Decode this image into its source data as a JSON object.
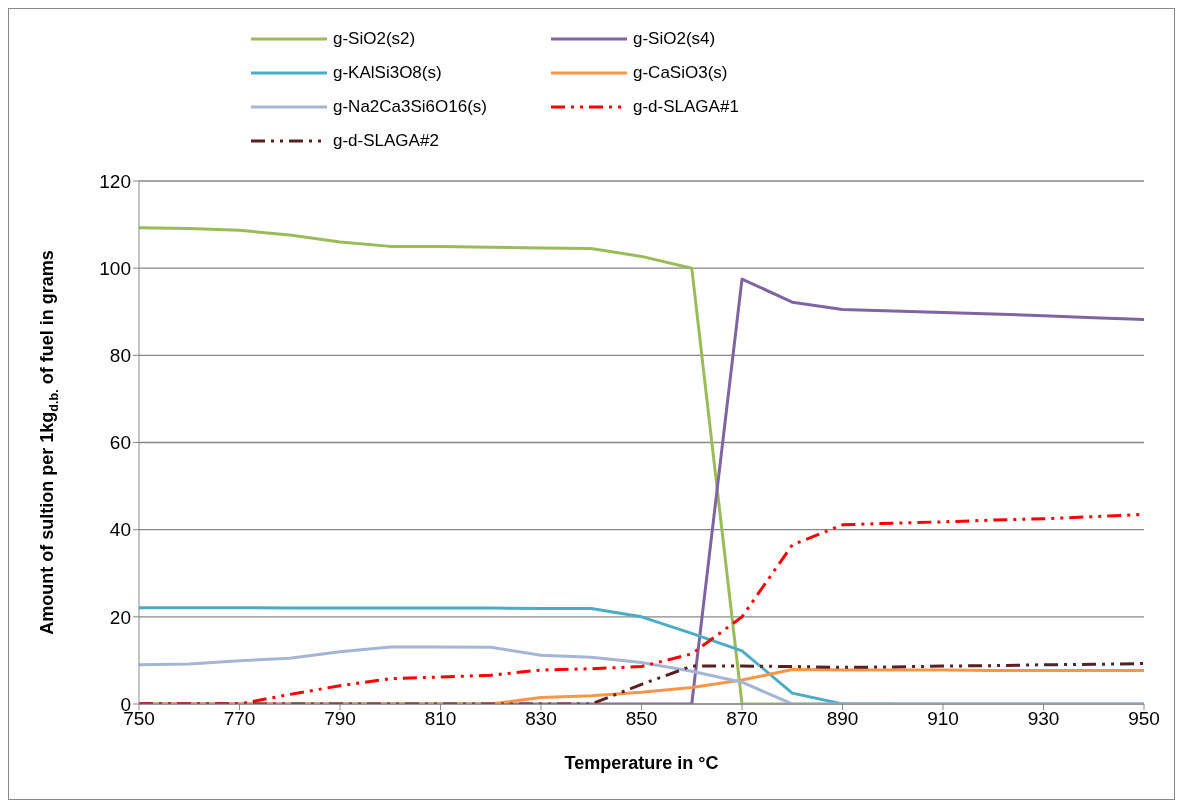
{
  "chart_data": {
    "type": "line",
    "xlabel": "Temperature in °C",
    "ylabel": "Amount of sultion per 1kg$_{d.b.}$ of fuel in grams",
    "x": [
      750,
      760,
      770,
      780,
      790,
      800,
      810,
      820,
      830,
      840,
      850,
      860,
      870,
      880,
      890,
      900,
      910,
      920,
      930,
      940,
      950
    ],
    "xlim": [
      750,
      950
    ],
    "xticks": [
      750,
      770,
      790,
      810,
      830,
      850,
      870,
      890,
      910,
      930,
      950
    ],
    "ylim": [
      0,
      120
    ],
    "yticks": [
      0,
      20,
      40,
      60,
      80,
      100,
      120
    ],
    "grid": "y",
    "legend": "top",
    "marker": "none",
    "series": [
      {
        "name": "g-SiO2(s2)",
        "color": "#9bbb59",
        "line_style": "solid",
        "values": [
          109.3,
          109.1,
          108.7,
          107.6,
          106,
          105,
          105,
          104.8,
          104.6,
          104.5,
          102.7,
          100,
          0,
          0,
          0,
          0,
          null,
          null,
          null,
          null,
          null
        ]
      },
      {
        "name": "g-SiO2(s4)",
        "color": "#8064a2",
        "line_style": "solid",
        "values": [
          0,
          0,
          0,
          0,
          0,
          0,
          0,
          0,
          0,
          0,
          0,
          0,
          97.5,
          92.2,
          90.5,
          90.2,
          89.8,
          89.5,
          89.1,
          88.6,
          88.2
        ]
      },
      {
        "name": "g-KAlSi3O8(s)",
        "color": "#4bacc6",
        "line_style": "solid",
        "values": [
          22.1,
          22.1,
          22.1,
          22,
          22,
          22,
          22,
          22,
          21.9,
          21.9,
          20,
          16.2,
          12.2,
          2.5,
          0,
          0,
          0,
          0,
          0,
          0,
          0
        ]
      },
      {
        "name": "g-CaSiO3(s)",
        "color": "#f79646",
        "line_style": "solid",
        "values": [
          0,
          0,
          0,
          0,
          0,
          0,
          0,
          0,
          1.5,
          1.9,
          2.7,
          3.8,
          5.5,
          7.9,
          7.8,
          7.8,
          7.8,
          7.7,
          7.7,
          7.7,
          7.7
        ]
      },
      {
        "name": "g-Na2Ca3Si6O16(s)",
        "color": "#a5b5d6",
        "line_style": "solid",
        "values": [
          9,
          9.2,
          9.9,
          10.5,
          12,
          13.1,
          13.1,
          13,
          11.2,
          10.7,
          9.5,
          7.5,
          5,
          0,
          0,
          0,
          0,
          0,
          0,
          0,
          0
        ]
      },
      {
        "name": "g-d-SLAGA#1",
        "color": "#ff0000",
        "line_style": "dashed",
        "values": [
          0,
          0,
          0,
          2.2,
          4.2,
          5.8,
          6.2,
          6.6,
          7.8,
          8.1,
          8.6,
          11.5,
          20,
          36.5,
          41.1,
          41.5,
          41.8,
          42.2,
          42.5,
          43,
          43.5
        ]
      },
      {
        "name": "g-d-SLAGA#2",
        "color": "#5a1f1f",
        "line_style": "dashed",
        "values": [
          0,
          0,
          0,
          0,
          0,
          0,
          0,
          0,
          0,
          0,
          4.5,
          8.7,
          8.7,
          8.6,
          8.4,
          8.5,
          8.7,
          8.8,
          9,
          9.1,
          9.3
        ]
      }
    ]
  }
}
